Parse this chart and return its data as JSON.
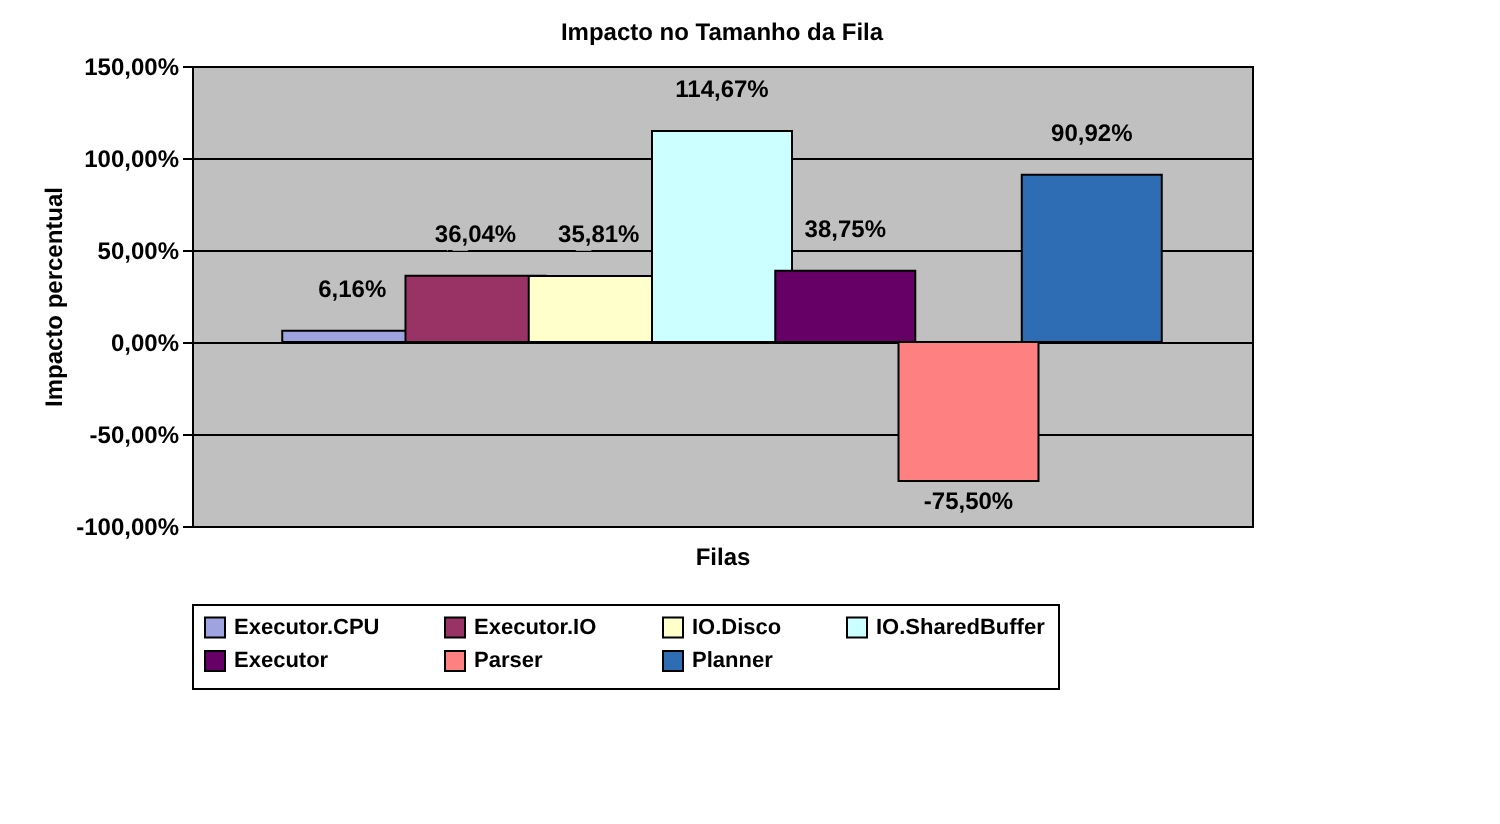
{
  "chart_data": {
    "type": "bar",
    "title": "Impacto no Tamanho da Fila",
    "xlabel": "Filas",
    "ylabel": "Impacto percentual",
    "categories": [
      null
    ],
    "series": [
      {
        "name": "Executor.CPU",
        "color": "#9fa3e0",
        "values": [
          6.16
        ],
        "value_labels": [
          "6,16%"
        ]
      },
      {
        "name": "Executor.IO",
        "color": "#993366",
        "values": [
          36.04
        ],
        "value_labels": [
          "36,04%"
        ]
      },
      {
        "name": "IO.Disco",
        "color": "#ffffcc",
        "values": [
          35.81
        ],
        "value_labels": [
          "35,81%"
        ]
      },
      {
        "name": "IO.SharedBuffer",
        "color": "#ccffff",
        "values": [
          114.67
        ],
        "value_labels": [
          "114,67%"
        ]
      },
      {
        "name": "Executor",
        "color": "#660066",
        "values": [
          38.75
        ],
        "value_labels": [
          "38,75%"
        ]
      },
      {
        "name": "Parser",
        "color": "#ff8080",
        "values": [
          -75.5
        ],
        "value_labels": [
          "-75,50%"
        ]
      },
      {
        "name": "Planner",
        "color": "#2e6db4",
        "values": [
          90.92
        ],
        "value_labels": [
          "90,92%"
        ]
      }
    ],
    "ylim": [
      -100,
      150
    ],
    "yticks": [
      {
        "value": -100,
        "label": "-100,00%"
      },
      {
        "value": -50,
        "label": "-50,00%"
      },
      {
        "value": 0,
        "label": "0,00%"
      },
      {
        "value": 50,
        "label": "50,00%"
      },
      {
        "value": 100,
        "label": "100,00%"
      },
      {
        "value": 150,
        "label": "150,00%"
      }
    ],
    "grid": "y",
    "legend": "bottom"
  }
}
